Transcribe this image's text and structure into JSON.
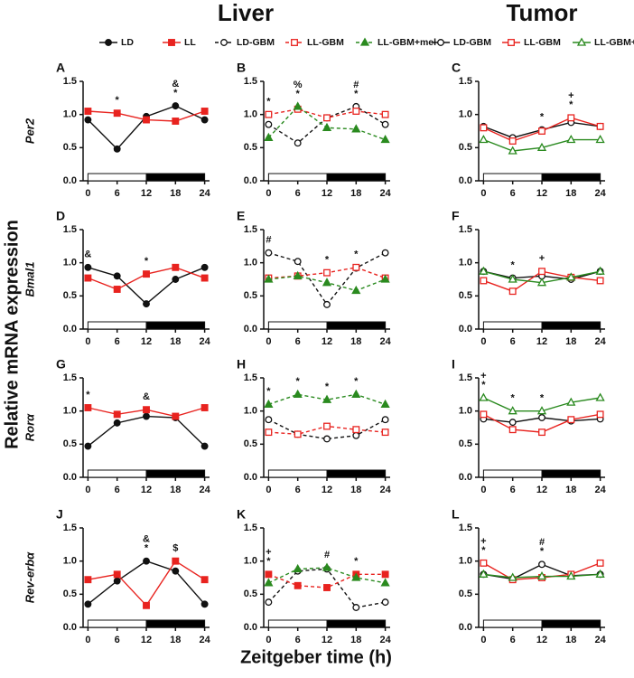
{
  "headers": [
    "Liver",
    "Tumor"
  ],
  "y_label": "Relative mRNA expression",
  "x_label": "Zeitgeber time (h)",
  "chart_data": [
    {
      "type": "line",
      "label": "A",
      "gene": "Per2",
      "x": [
        0,
        6,
        12,
        18,
        24
      ],
      "xlim": [
        -1,
        25
      ],
      "xticks": [
        0,
        6,
        12,
        18,
        24
      ],
      "ylim": [
        0,
        1.5
      ],
      "yticks": [
        {
          "value": 0,
          "label": "0.0"
        },
        {
          "value": 0.5,
          "label": "0.5"
        },
        {
          "value": 1,
          "label": "1.0"
        },
        {
          "value": 1.5,
          "label": "1.5"
        }
      ],
      "series": [
        {
          "name": "LD",
          "color": "#111111",
          "marker": "circle",
          "filled": true,
          "dashed": false,
          "values": [
            0.92,
            0.48,
            0.97,
            1.13,
            0.92
          ]
        },
        {
          "name": "LL",
          "color": "#e8231f",
          "marker": "square",
          "filled": true,
          "dashed": false,
          "values": [
            1.05,
            1.02,
            0.92,
            0.9,
            1.05
          ]
        }
      ],
      "annotations": [
        {
          "x": 6,
          "text": "*"
        },
        {
          "x": 18,
          "text": "*"
        },
        {
          "x": 18,
          "text": "&"
        }
      ]
    },
    {
      "type": "line",
      "label": "B",
      "x": [
        0,
        6,
        12,
        18,
        24
      ],
      "xlim": [
        -1,
        25
      ],
      "xticks": [
        0,
        6,
        12,
        18,
        24
      ],
      "ylim": [
        0,
        1.5
      ],
      "yticks": [
        {
          "value": 0,
          "label": "0.0"
        },
        {
          "value": 0.5,
          "label": "0.5"
        },
        {
          "value": 1,
          "label": "1.0"
        },
        {
          "value": 1.5,
          "label": "1.5"
        }
      ],
      "series": [
        {
          "name": "LD-GBM",
          "color": "#111111",
          "marker": "circle",
          "filled": false,
          "dashed": true,
          "values": [
            0.85,
            0.57,
            0.95,
            1.12,
            0.85
          ]
        },
        {
          "name": "LL-GBM",
          "color": "#e8231f",
          "marker": "square",
          "filled": false,
          "dashed": true,
          "values": [
            1.0,
            1.08,
            0.95,
            1.05,
            1.0
          ]
        },
        {
          "name": "LL-GBM+mel",
          "color": "#2a8a1f",
          "marker": "triangle",
          "filled": true,
          "dashed": true,
          "values": [
            0.65,
            1.12,
            0.8,
            0.78,
            0.62
          ]
        }
      ],
      "annotations": [
        {
          "x": 0,
          "text": "*"
        },
        {
          "x": 6,
          "text": "*"
        },
        {
          "x": 6,
          "text": "%"
        },
        {
          "x": 18,
          "text": "*"
        },
        {
          "x": 18,
          "text": "#"
        }
      ]
    },
    {
      "type": "line",
      "label": "C",
      "x": [
        0,
        6,
        12,
        18,
        24
      ],
      "xlim": [
        -1,
        25
      ],
      "xticks": [
        0,
        6,
        12,
        18,
        24
      ],
      "ylim": [
        0,
        1.5
      ],
      "yticks": [
        {
          "value": 0,
          "label": "0.0"
        },
        {
          "value": 0.5,
          "label": "0.5"
        },
        {
          "value": 1,
          "label": "1.0"
        },
        {
          "value": 1.5,
          "label": "1.5"
        }
      ],
      "series": [
        {
          "name": "LD-GBM",
          "color": "#111111",
          "marker": "circle",
          "filled": false,
          "dashed": false,
          "values": [
            0.82,
            0.65,
            0.77,
            0.88,
            0.82
          ]
        },
        {
          "name": "LL-GBM",
          "color": "#e8231f",
          "marker": "square",
          "filled": false,
          "dashed": false,
          "values": [
            0.8,
            0.6,
            0.75,
            0.95,
            0.82
          ]
        },
        {
          "name": "LL-GBM+mel",
          "color": "#2a8a1f",
          "marker": "triangle",
          "filled": false,
          "dashed": false,
          "values": [
            0.62,
            0.45,
            0.5,
            0.62,
            0.62
          ]
        }
      ],
      "annotations": [
        {
          "x": 12,
          "text": "*"
        },
        {
          "x": 18,
          "text": "*"
        },
        {
          "x": 18,
          "text": "+"
        }
      ]
    },
    {
      "type": "line",
      "label": "D",
      "gene": "Bmal1",
      "x": [
        0,
        6,
        12,
        18,
        24
      ],
      "xlim": [
        -1,
        25
      ],
      "xticks": [
        0,
        6,
        12,
        18,
        24
      ],
      "ylim": [
        0,
        1.5
      ],
      "yticks": [
        {
          "value": 0,
          "label": "0.0"
        },
        {
          "value": 0.5,
          "label": "0.5"
        },
        {
          "value": 1,
          "label": "1.0"
        },
        {
          "value": 1.5,
          "label": "1.5"
        }
      ],
      "series": [
        {
          "color": "#111111",
          "marker": "circle",
          "filled": true,
          "dashed": false,
          "values": [
            0.93,
            0.8,
            0.38,
            0.75,
            0.93
          ]
        },
        {
          "color": "#e8231f",
          "marker": "square",
          "filled": true,
          "dashed": false,
          "values": [
            0.77,
            0.6,
            0.83,
            0.93,
            0.77
          ]
        }
      ],
      "annotations": [
        {
          "x": 0,
          "text": "&"
        },
        {
          "x": 12,
          "text": "*"
        }
      ]
    },
    {
      "type": "line",
      "label": "E",
      "x": [
        0,
        6,
        12,
        18,
        24
      ],
      "xlim": [
        -1,
        25
      ],
      "xticks": [
        0,
        6,
        12,
        18,
        24
      ],
      "ylim": [
        0,
        1.5
      ],
      "yticks": [
        {
          "value": 0,
          "label": "0.0"
        },
        {
          "value": 0.5,
          "label": "0.5"
        },
        {
          "value": 1,
          "label": "1.0"
        },
        {
          "value": 1.5,
          "label": "1.5"
        }
      ],
      "series": [
        {
          "color": "#111111",
          "marker": "circle",
          "filled": false,
          "dashed": true,
          "values": [
            1.15,
            1.02,
            0.37,
            0.92,
            1.15
          ]
        },
        {
          "color": "#e8231f",
          "marker": "square",
          "filled": false,
          "dashed": true,
          "values": [
            0.77,
            0.8,
            0.85,
            0.93,
            0.77
          ]
        },
        {
          "color": "#2a8a1f",
          "marker": "triangle",
          "filled": true,
          "dashed": true,
          "values": [
            0.75,
            0.8,
            0.7,
            0.58,
            0.75
          ]
        }
      ],
      "annotations": [
        {
          "x": 0,
          "text": "#"
        },
        {
          "x": 12,
          "text": "*"
        },
        {
          "x": 18,
          "text": "*"
        }
      ]
    },
    {
      "type": "line",
      "label": "F",
      "x": [
        0,
        6,
        12,
        18,
        24
      ],
      "xlim": [
        -1,
        25
      ],
      "xticks": [
        0,
        6,
        12,
        18,
        24
      ],
      "ylim": [
        0,
        1.5
      ],
      "yticks": [
        {
          "value": 0,
          "label": "0.0"
        },
        {
          "value": 0.5,
          "label": "0.5"
        },
        {
          "value": 1,
          "label": "1.0"
        },
        {
          "value": 1.5,
          "label": "1.5"
        }
      ],
      "series": [
        {
          "color": "#111111",
          "marker": "circle",
          "filled": false,
          "dashed": false,
          "values": [
            0.87,
            0.77,
            0.8,
            0.75,
            0.87
          ]
        },
        {
          "color": "#e8231f",
          "marker": "square",
          "filled": false,
          "dashed": false,
          "values": [
            0.73,
            0.57,
            0.87,
            0.78,
            0.73
          ]
        },
        {
          "color": "#2a8a1f",
          "marker": "triangle",
          "filled": false,
          "dashed": false,
          "values": [
            0.87,
            0.75,
            0.7,
            0.78,
            0.87
          ]
        }
      ],
      "annotations": [
        {
          "x": 6,
          "text": "*"
        },
        {
          "x": 12,
          "text": "+"
        }
      ]
    },
    {
      "type": "line",
      "label": "G",
      "gene": "Rorα",
      "x": [
        0,
        6,
        12,
        18,
        24
      ],
      "xlim": [
        -1,
        25
      ],
      "xticks": [
        0,
        6,
        12,
        18,
        24
      ],
      "ylim": [
        0,
        1.5
      ],
      "yticks": [
        {
          "value": 0,
          "label": "0.0"
        },
        {
          "value": 0.5,
          "label": "0.5"
        },
        {
          "value": 1,
          "label": "1.0"
        },
        {
          "value": 1.5,
          "label": "1.5"
        }
      ],
      "series": [
        {
          "color": "#111111",
          "marker": "circle",
          "filled": true,
          "dashed": false,
          "values": [
            0.47,
            0.82,
            0.92,
            0.9,
            0.47
          ]
        },
        {
          "color": "#e8231f",
          "marker": "square",
          "filled": true,
          "dashed": false,
          "values": [
            1.05,
            0.95,
            1.02,
            0.92,
            1.05
          ]
        }
      ],
      "annotations": [
        {
          "x": 0,
          "text": "*"
        },
        {
          "x": 12,
          "text": "&"
        }
      ]
    },
    {
      "type": "line",
      "label": "H",
      "x": [
        0,
        6,
        12,
        18,
        24
      ],
      "xlim": [
        -1,
        25
      ],
      "xticks": [
        0,
        6,
        12,
        18,
        24
      ],
      "ylim": [
        0,
        1.5
      ],
      "yticks": [
        {
          "value": 0,
          "label": "0.0"
        },
        {
          "value": 0.5,
          "label": "0.5"
        },
        {
          "value": 1,
          "label": "1.0"
        },
        {
          "value": 1.5,
          "label": "1.5"
        }
      ],
      "series": [
        {
          "color": "#111111",
          "marker": "circle",
          "filled": false,
          "dashed": true,
          "values": [
            0.87,
            0.65,
            0.58,
            0.63,
            0.87
          ]
        },
        {
          "color": "#e8231f",
          "marker": "square",
          "filled": false,
          "dashed": true,
          "values": [
            0.68,
            0.65,
            0.77,
            0.72,
            0.68
          ]
        },
        {
          "color": "#2a8a1f",
          "marker": "triangle",
          "filled": true,
          "dashed": true,
          "values": [
            1.1,
            1.25,
            1.17,
            1.25,
            1.1
          ]
        }
      ],
      "annotations": [
        {
          "x": 0,
          "text": "*"
        },
        {
          "x": 6,
          "text": "*"
        },
        {
          "x": 12,
          "text": "*"
        },
        {
          "x": 18,
          "text": "*"
        }
      ]
    },
    {
      "type": "line",
      "label": "I",
      "x": [
        0,
        6,
        12,
        18,
        24
      ],
      "xlim": [
        -1,
        25
      ],
      "xticks": [
        0,
        6,
        12,
        18,
        24
      ],
      "ylim": [
        0,
        1.5
      ],
      "yticks": [
        {
          "value": 0,
          "label": "0.0"
        },
        {
          "value": 0.5,
          "label": "0.5"
        },
        {
          "value": 1,
          "label": "1.0"
        },
        {
          "value": 1.5,
          "label": "1.5"
        }
      ],
      "series": [
        {
          "color": "#111111",
          "marker": "circle",
          "filled": false,
          "dashed": false,
          "values": [
            0.88,
            0.83,
            0.9,
            0.85,
            0.88
          ]
        },
        {
          "color": "#e8231f",
          "marker": "square",
          "filled": false,
          "dashed": false,
          "values": [
            0.95,
            0.72,
            0.68,
            0.87,
            0.95
          ]
        },
        {
          "color": "#2a8a1f",
          "marker": "triangle",
          "filled": false,
          "dashed": false,
          "values": [
            1.2,
            1.0,
            1.0,
            1.13,
            1.2
          ]
        }
      ],
      "annotations": [
        {
          "x": 0,
          "text": "*"
        },
        {
          "x": 0,
          "text": "+"
        },
        {
          "x": 6,
          "text": "*"
        },
        {
          "x": 12,
          "text": "*"
        }
      ]
    },
    {
      "type": "line",
      "label": "J",
      "gene": "Rev-erbα",
      "x": [
        0,
        6,
        12,
        18,
        24
      ],
      "xlim": [
        -1,
        25
      ],
      "xticks": [
        0,
        6,
        12,
        18,
        24
      ],
      "ylim": [
        0,
        1.5
      ],
      "yticks": [
        {
          "value": 0,
          "label": "0.0"
        },
        {
          "value": 0.5,
          "label": "0.5"
        },
        {
          "value": 1,
          "label": "1.0"
        },
        {
          "value": 1.5,
          "label": "1.5"
        }
      ],
      "series": [
        {
          "color": "#111111",
          "marker": "circle",
          "filled": true,
          "dashed": false,
          "values": [
            0.35,
            0.7,
            1.0,
            0.85,
            0.35
          ]
        },
        {
          "color": "#e8231f",
          "marker": "square",
          "filled": true,
          "dashed": false,
          "values": [
            0.72,
            0.8,
            0.33,
            1.0,
            0.72
          ]
        }
      ],
      "annotations": [
        {
          "x": 12,
          "text": "*"
        },
        {
          "x": 12,
          "text": "&"
        },
        {
          "x": 18,
          "text": "$"
        }
      ]
    },
    {
      "type": "line",
      "label": "K",
      "x": [
        0,
        6,
        12,
        18,
        24
      ],
      "xlim": [
        -1,
        25
      ],
      "xticks": [
        0,
        6,
        12,
        18,
        24
      ],
      "ylim": [
        0,
        1.5
      ],
      "yticks": [
        {
          "value": 0,
          "label": "0.0"
        },
        {
          "value": 0.5,
          "label": "0.5"
        },
        {
          "value": 1,
          "label": "1.0"
        },
        {
          "value": 1.5,
          "label": "1.5"
        }
      ],
      "series": [
        {
          "color": "#111111",
          "marker": "circle",
          "filled": false,
          "dashed": true,
          "values": [
            0.38,
            0.85,
            0.88,
            0.3,
            0.38
          ]
        },
        {
          "color": "#e8231f",
          "marker": "square",
          "filled": true,
          "dashed": true,
          "values": [
            0.8,
            0.63,
            0.6,
            0.8,
            0.8
          ]
        },
        {
          "color": "#2a8a1f",
          "marker": "triangle",
          "filled": true,
          "dashed": true,
          "values": [
            0.67,
            0.88,
            0.9,
            0.75,
            0.67
          ]
        }
      ],
      "annotations": [
        {
          "x": 0,
          "text": "*"
        },
        {
          "x": 0,
          "text": "+"
        },
        {
          "x": 12,
          "text": "#"
        },
        {
          "x": 18,
          "text": "*"
        }
      ]
    },
    {
      "type": "line",
      "label": "L",
      "x": [
        0,
        6,
        12,
        18,
        24
      ],
      "xlim": [
        -1,
        25
      ],
      "xticks": [
        0,
        6,
        12,
        18,
        24
      ],
      "ylim": [
        0,
        1.5
      ],
      "yticks": [
        {
          "value": 0,
          "label": "0.0"
        },
        {
          "value": 0.5,
          "label": "0.5"
        },
        {
          "value": 1,
          "label": "1.0"
        },
        {
          "value": 1.5,
          "label": "1.5"
        }
      ],
      "series": [
        {
          "color": "#111111",
          "marker": "circle",
          "filled": false,
          "dashed": false,
          "values": [
            0.8,
            0.73,
            0.95,
            0.78,
            0.8
          ]
        },
        {
          "color": "#e8231f",
          "marker": "square",
          "filled": false,
          "dashed": false,
          "values": [
            0.97,
            0.72,
            0.75,
            0.8,
            0.97
          ]
        },
        {
          "color": "#2a8a1f",
          "marker": "triangle",
          "filled": false,
          "dashed": false,
          "values": [
            0.8,
            0.75,
            0.77,
            0.77,
            0.8
          ]
        }
      ],
      "annotations": [
        {
          "x": 0,
          "text": "*"
        },
        {
          "x": 0,
          "text": "+"
        },
        {
          "x": 12,
          "text": "*"
        },
        {
          "x": 12,
          "text": "#"
        }
      ]
    }
  ]
}
